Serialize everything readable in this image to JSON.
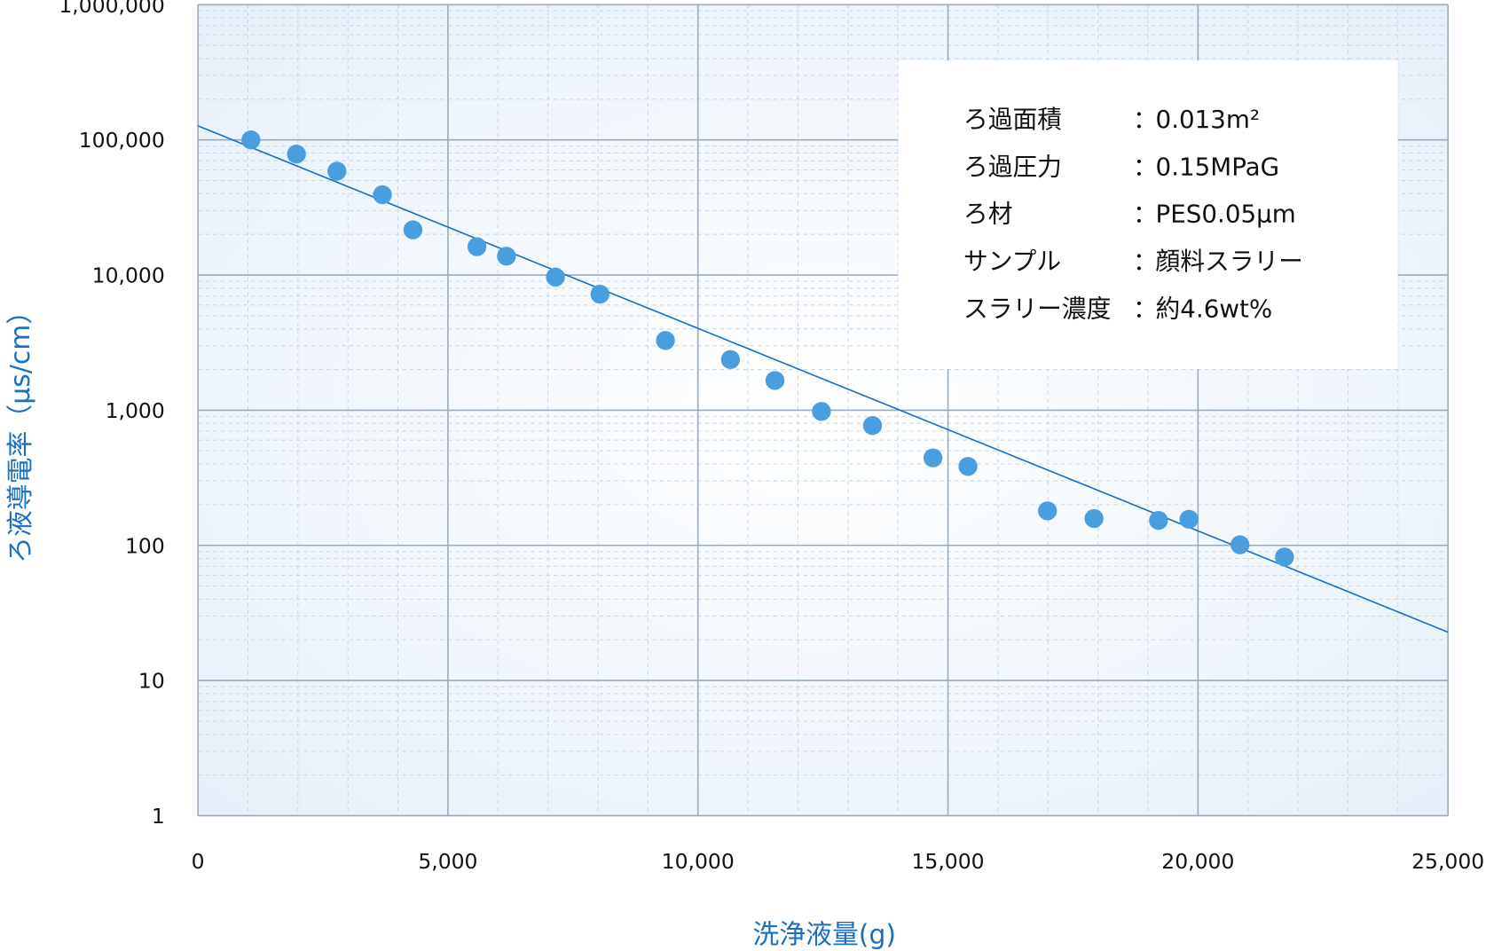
{
  "chart_data": {
    "type": "scatter",
    "xlabel": "洗浄液量(g)",
    "ylabel": "ろ液導電率（μs/cm）",
    "x_range": [
      0,
      25000
    ],
    "y_range": [
      1,
      1000000
    ],
    "y_scale": "log",
    "grid": true,
    "x_ticks": [
      "0",
      "5,000",
      "10,000",
      "15,000",
      "20,000",
      "25,000"
    ],
    "y_ticks": [
      "1",
      "10",
      "100",
      "1,000",
      "10,000",
      "100,000",
      "1,000,000"
    ],
    "point_color": "#4a9ee0",
    "trend_color": "#1a6fc0",
    "points": [
      {
        "x": 1060,
        "y": 100000
      },
      {
        "x": 1970,
        "y": 78500
      },
      {
        "x": 2780,
        "y": 58700
      },
      {
        "x": 3690,
        "y": 39300
      },
      {
        "x": 4300,
        "y": 21600
      },
      {
        "x": 5580,
        "y": 16200
      },
      {
        "x": 6170,
        "y": 13800
      },
      {
        "x": 7150,
        "y": 9660
      },
      {
        "x": 8040,
        "y": 7220
      },
      {
        "x": 9350,
        "y": 3280
      },
      {
        "x": 10650,
        "y": 2370
      },
      {
        "x": 11540,
        "y": 1660
      },
      {
        "x": 12470,
        "y": 980
      },
      {
        "x": 13490,
        "y": 770
      },
      {
        "x": 14700,
        "y": 444
      },
      {
        "x": 15400,
        "y": 384
      },
      {
        "x": 16990,
        "y": 180
      },
      {
        "x": 17920,
        "y": 158
      },
      {
        "x": 19210,
        "y": 153
      },
      {
        "x": 19820,
        "y": 156
      },
      {
        "x": 20840,
        "y": 101
      },
      {
        "x": 21730,
        "y": 82
      }
    ],
    "trendline": {
      "type": "exponential",
      "start": {
        "x": 0,
        "y": 127000
      },
      "end": {
        "x": 25000,
        "y": 22.8
      }
    }
  },
  "info_box": {
    "rows": [
      {
        "label": "ろ過面積",
        "value": "0.013m²"
      },
      {
        "label": "ろ過圧力",
        "value": "0.15MPaG"
      },
      {
        "label": "ろ材",
        "value": "PES0.05μm"
      },
      {
        "label": "サンプル",
        "value": "顔料スラリー"
      },
      {
        "label": "スラリー濃度",
        "value": "約4.6wt%"
      }
    ],
    "separator": "："
  }
}
